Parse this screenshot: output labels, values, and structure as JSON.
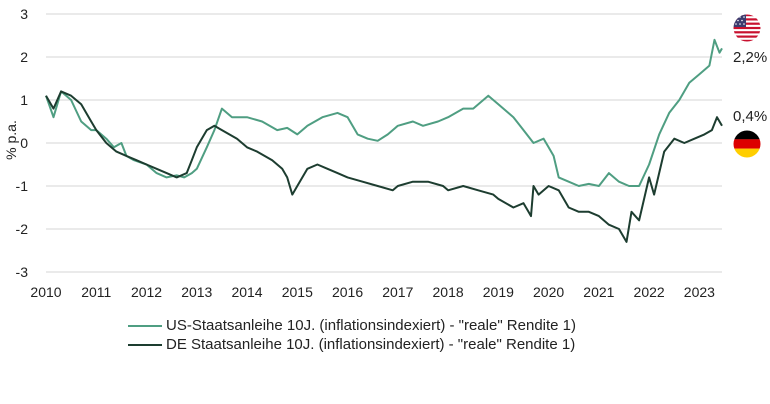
{
  "chart_data": {
    "type": "line",
    "title": "",
    "xlabel": "",
    "ylabel": "% p.a.",
    "xlim": [
      2010,
      2023.45
    ],
    "ylim": [
      -3,
      3
    ],
    "x_ticks": [
      "2010",
      "2011",
      "2012",
      "2013",
      "2014",
      "2015",
      "2016",
      "2017",
      "2018",
      "2019",
      "2020",
      "2021",
      "2022",
      "2023"
    ],
    "y_ticks": [
      "-3",
      "-2",
      "-1",
      "0",
      "1",
      "2",
      "3"
    ],
    "grid": "horizontal",
    "legend_position": "bottom",
    "series": [
      {
        "name": "US-Staatsanleihe 10J. (inflationsindexiert) - \"reale\" Rendite 1)",
        "color": "#4f9e82",
        "end_label": "2,2%",
        "flag": "us-flag",
        "points": [
          [
            2010.0,
            1.1
          ],
          [
            2010.15,
            0.6
          ],
          [
            2010.3,
            1.2
          ],
          [
            2010.5,
            1.0
          ],
          [
            2010.7,
            0.5
          ],
          [
            2010.9,
            0.3
          ],
          [
            2011.0,
            0.3
          ],
          [
            2011.2,
            0.1
          ],
          [
            2011.35,
            -0.1
          ],
          [
            2011.5,
            0.0
          ],
          [
            2011.6,
            -0.3
          ],
          [
            2011.75,
            -0.4
          ],
          [
            2012.0,
            -0.5
          ],
          [
            2012.2,
            -0.7
          ],
          [
            2012.4,
            -0.8
          ],
          [
            2012.6,
            -0.75
          ],
          [
            2012.75,
            -0.8
          ],
          [
            2012.9,
            -0.7
          ],
          [
            2013.0,
            -0.6
          ],
          [
            2013.2,
            -0.1
          ],
          [
            2013.35,
            0.3
          ],
          [
            2013.5,
            0.8
          ],
          [
            2013.7,
            0.6
          ],
          [
            2014.0,
            0.6
          ],
          [
            2014.3,
            0.5
          ],
          [
            2014.6,
            0.3
          ],
          [
            2014.8,
            0.35
          ],
          [
            2015.0,
            0.2
          ],
          [
            2015.2,
            0.4
          ],
          [
            2015.5,
            0.6
          ],
          [
            2015.8,
            0.7
          ],
          [
            2016.0,
            0.6
          ],
          [
            2016.2,
            0.2
          ],
          [
            2016.4,
            0.1
          ],
          [
            2016.6,
            0.05
          ],
          [
            2016.8,
            0.2
          ],
          [
            2017.0,
            0.4
          ],
          [
            2017.3,
            0.5
          ],
          [
            2017.5,
            0.4
          ],
          [
            2017.8,
            0.5
          ],
          [
            2018.0,
            0.6
          ],
          [
            2018.3,
            0.8
          ],
          [
            2018.5,
            0.8
          ],
          [
            2018.8,
            1.1
          ],
          [
            2019.0,
            0.9
          ],
          [
            2019.3,
            0.6
          ],
          [
            2019.5,
            0.3
          ],
          [
            2019.7,
            0.0
          ],
          [
            2019.9,
            0.1
          ],
          [
            2020.0,
            -0.1
          ],
          [
            2020.1,
            -0.3
          ],
          [
            2020.2,
            -0.8
          ],
          [
            2020.4,
            -0.9
          ],
          [
            2020.6,
            -1.0
          ],
          [
            2020.8,
            -0.95
          ],
          [
            2021.0,
            -1.0
          ],
          [
            2021.2,
            -0.7
          ],
          [
            2021.4,
            -0.9
          ],
          [
            2021.6,
            -1.0
          ],
          [
            2021.8,
            -1.0
          ],
          [
            2022.0,
            -0.5
          ],
          [
            2022.2,
            0.2
          ],
          [
            2022.4,
            0.7
          ],
          [
            2022.6,
            1.0
          ],
          [
            2022.8,
            1.4
          ],
          [
            2023.0,
            1.6
          ],
          [
            2023.2,
            1.8
          ],
          [
            2023.3,
            2.4
          ],
          [
            2023.4,
            2.1
          ],
          [
            2023.45,
            2.2
          ]
        ]
      },
      {
        "name": "DE Staatsanleihe 10J. (inflationsindexiert) - \"reale\" Rendite 1)",
        "color": "#1d3d30",
        "end_label": "0,4%",
        "flag": "de-flag",
        "points": [
          [
            2010.0,
            1.1
          ],
          [
            2010.15,
            0.8
          ],
          [
            2010.3,
            1.2
          ],
          [
            2010.5,
            1.1
          ],
          [
            2010.7,
            0.9
          ],
          [
            2010.9,
            0.5
          ],
          [
            2011.0,
            0.3
          ],
          [
            2011.2,
            0.0
          ],
          [
            2011.4,
            -0.2
          ],
          [
            2011.6,
            -0.3
          ],
          [
            2011.8,
            -0.4
          ],
          [
            2012.0,
            -0.5
          ],
          [
            2012.2,
            -0.6
          ],
          [
            2012.4,
            -0.7
          ],
          [
            2012.6,
            -0.8
          ],
          [
            2012.8,
            -0.7
          ],
          [
            2012.9,
            -0.4
          ],
          [
            2013.0,
            -0.1
          ],
          [
            2013.2,
            0.3
          ],
          [
            2013.35,
            0.4
          ],
          [
            2013.5,
            0.3
          ],
          [
            2013.8,
            0.1
          ],
          [
            2014.0,
            -0.1
          ],
          [
            2014.2,
            -0.2
          ],
          [
            2014.5,
            -0.4
          ],
          [
            2014.7,
            -0.6
          ],
          [
            2014.8,
            -0.8
          ],
          [
            2014.9,
            -1.2
          ],
          [
            2015.0,
            -1.0
          ],
          [
            2015.2,
            -0.6
          ],
          [
            2015.4,
            -0.5
          ],
          [
            2015.6,
            -0.6
          ],
          [
            2015.8,
            -0.7
          ],
          [
            2016.0,
            -0.8
          ],
          [
            2016.3,
            -0.9
          ],
          [
            2016.6,
            -1.0
          ],
          [
            2016.9,
            -1.1
          ],
          [
            2017.0,
            -1.0
          ],
          [
            2017.3,
            -0.9
          ],
          [
            2017.6,
            -0.9
          ],
          [
            2017.9,
            -1.0
          ],
          [
            2018.0,
            -1.1
          ],
          [
            2018.3,
            -1.0
          ],
          [
            2018.6,
            -1.1
          ],
          [
            2018.9,
            -1.2
          ],
          [
            2019.0,
            -1.3
          ],
          [
            2019.3,
            -1.5
          ],
          [
            2019.5,
            -1.4
          ],
          [
            2019.6,
            -1.6
          ],
          [
            2019.65,
            -1.7
          ],
          [
            2019.7,
            -1.0
          ],
          [
            2019.8,
            -1.2
          ],
          [
            2020.0,
            -1.0
          ],
          [
            2020.2,
            -1.1
          ],
          [
            2020.4,
            -1.5
          ],
          [
            2020.6,
            -1.6
          ],
          [
            2020.8,
            -1.6
          ],
          [
            2021.0,
            -1.7
          ],
          [
            2021.2,
            -1.9
          ],
          [
            2021.4,
            -2.0
          ],
          [
            2021.55,
            -2.3
          ],
          [
            2021.65,
            -1.6
          ],
          [
            2021.8,
            -1.8
          ],
          [
            2022.0,
            -0.8
          ],
          [
            2022.1,
            -1.2
          ],
          [
            2022.3,
            -0.2
          ],
          [
            2022.5,
            0.1
          ],
          [
            2022.7,
            0.0
          ],
          [
            2022.9,
            0.1
          ],
          [
            2023.1,
            0.2
          ],
          [
            2023.25,
            0.3
          ],
          [
            2023.35,
            0.6
          ],
          [
            2023.45,
            0.4
          ]
        ]
      }
    ]
  }
}
